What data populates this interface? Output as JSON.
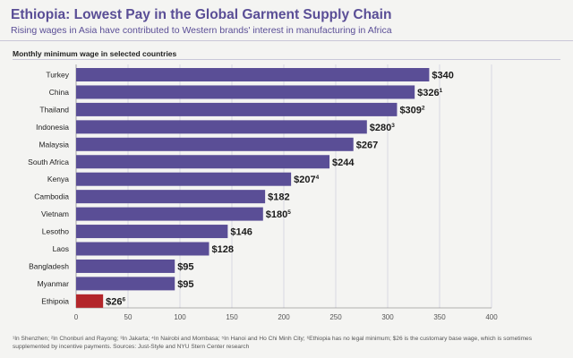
{
  "header": {
    "title": "Ethiopia: Lowest Pay in the Global Garment Supply Chain",
    "subtitle": "Rising wages in Asia have contributed to Western brands' interest in manufacturing in Africa"
  },
  "colors": {
    "bar": "#5a4e96",
    "highlight": "#b3262a",
    "title": "#5a4e96"
  },
  "footnote": "¹In Shenzhen; ²In Chonburi and Rayong; ³In Jakarta; ⁴In Nairobi and Mombasa; ⁵In Hanoi and Ho Chi Minh City; ⁶Ethiopia has no legal minimum; $26 is the customary base wage, which is sometimes supplemented by incentive payments. Sources: Just-Style and NYU Stern Center research",
  "chart_data": {
    "type": "bar",
    "orientation": "horizontal",
    "title": "Monthly minimum wage in selected countries",
    "categories": [
      "Turkey",
      "China",
      "Thailand",
      "Indonesia",
      "Malaysia",
      "South Africa",
      "Kenya",
      "Cambodia",
      "Vietnam",
      "Lesotho",
      "Laos",
      "Bangladesh",
      "Myanmar",
      "Ethipoia"
    ],
    "values": [
      340,
      326,
      309,
      280,
      267,
      244,
      207,
      182,
      180,
      146,
      128,
      95,
      95,
      26
    ],
    "value_labels": [
      "$340",
      "$326",
      "$309",
      "$280",
      "$267",
      "$244",
      "$207",
      "$182",
      "$180",
      "$146",
      "$128",
      "$95",
      "$95",
      "$26"
    ],
    "footnote_marks": [
      "",
      "1",
      "2",
      "3",
      "",
      "",
      "4",
      "",
      "5",
      "",
      "",
      "",
      "",
      "6"
    ],
    "highlight_category": "Ethipoia",
    "xlim": [
      0,
      400
    ],
    "xticks": [
      0,
      50,
      100,
      150,
      200,
      250,
      300,
      350,
      400
    ],
    "grid": true
  }
}
